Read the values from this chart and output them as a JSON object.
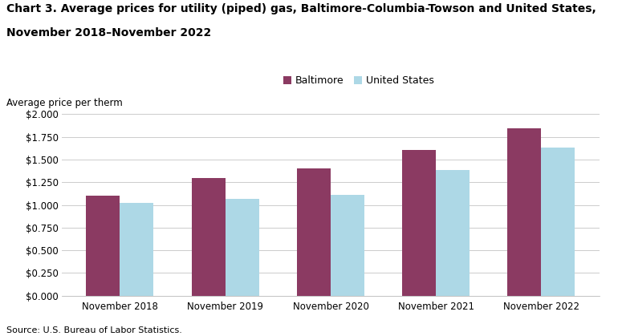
{
  "title_line1": "Chart 3. Average prices for utility (piped) gas, Baltimore-Columbia-Towson and United States,",
  "title_line2": "November 2018–November 2022",
  "ylabel_text": "Average price per therm",
  "categories": [
    "November 2018",
    "November 2019",
    "November 2020",
    "November 2021",
    "November 2022"
  ],
  "baltimore": [
    1.099,
    1.299,
    1.399,
    1.609,
    1.849
  ],
  "us": [
    1.019,
    1.069,
    1.109,
    1.389,
    1.629
  ],
  "baltimore_color": "#8B3A62",
  "us_color": "#ADD8E6",
  "ylim": [
    0,
    2.0
  ],
  "yticks": [
    0.0,
    0.25,
    0.5,
    0.75,
    1.0,
    1.25,
    1.5,
    1.75,
    2.0
  ],
  "legend_labels": [
    "Baltimore",
    "United States"
  ],
  "source": "Source: U.S. Bureau of Labor Statistics.",
  "bar_width": 0.32,
  "title_fontsize": 10,
  "tick_fontsize": 8.5,
  "legend_fontsize": 9,
  "source_fontsize": 8
}
